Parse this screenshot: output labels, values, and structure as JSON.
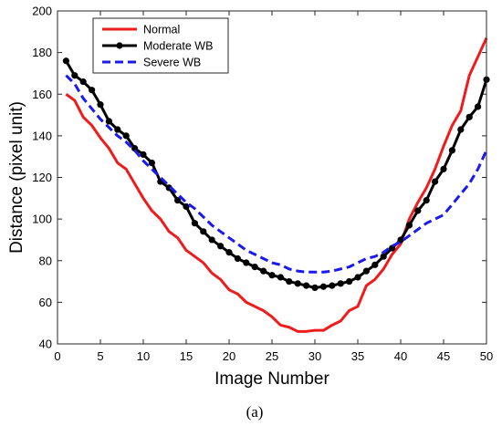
{
  "caption": "(a)",
  "chart_data": {
    "type": "line",
    "xlabel": "Image Number",
    "ylabel": "Distance (pixel unit)",
    "xlim": [
      0,
      50
    ],
    "ylim": [
      40,
      200
    ],
    "xticks": [
      0,
      5,
      10,
      15,
      20,
      25,
      30,
      35,
      40,
      45,
      50
    ],
    "yticks": [
      40,
      60,
      80,
      100,
      120,
      140,
      160,
      180,
      200
    ],
    "grid": false,
    "legend": "top-left",
    "x": [
      1,
      2,
      3,
      4,
      5,
      6,
      7,
      8,
      9,
      10,
      11,
      12,
      13,
      14,
      15,
      16,
      17,
      18,
      19,
      20,
      21,
      22,
      23,
      24,
      25,
      26,
      27,
      28,
      29,
      30,
      31,
      32,
      33,
      34,
      35,
      36,
      37,
      38,
      39,
      40,
      41,
      42,
      43,
      44,
      45,
      46,
      47,
      48,
      49,
      50
    ],
    "series": [
      {
        "name": "Normal",
        "color": "#ee1c1c",
        "style": "solid",
        "markers": false,
        "values": [
          160,
          157,
          149,
          145,
          139,
          134,
          127,
          124,
          117,
          110,
          104,
          100,
          94,
          91,
          85,
          82,
          79,
          74,
          71,
          66,
          64,
          60,
          58,
          56,
          53,
          49,
          48,
          46,
          46,
          46.5,
          46.5,
          49,
          51,
          56,
          58,
          68,
          71,
          76,
          83,
          88,
          100,
          108,
          115,
          124,
          135,
          145,
          152,
          169,
          178,
          187
        ]
      },
      {
        "name": "Moderate WB",
        "color": "#000000",
        "style": "solid",
        "markers": true,
        "values": [
          176,
          169,
          166,
          162,
          155,
          147,
          143,
          140,
          134,
          131,
          127,
          118,
          115,
          109,
          106,
          98,
          94,
          90,
          87,
          84,
          81,
          79,
          77,
          75,
          73,
          72,
          70,
          69,
          68,
          67,
          67.5,
          68,
          69,
          70,
          72,
          75,
          78,
          82,
          86,
          90,
          97,
          104,
          109,
          118,
          124,
          133,
          143,
          149,
          154,
          167
        ]
      },
      {
        "name": "Severe WB",
        "color": "#1a1aee",
        "style": "dashed",
        "markers": false,
        "values": [
          169,
          165,
          158,
          153,
          148,
          144,
          140,
          137,
          133,
          128,
          124,
          120,
          116,
          112,
          108,
          105,
          101,
          97,
          94,
          91,
          88,
          85,
          83,
          81,
          79,
          78,
          76,
          75,
          74.5,
          74.5,
          74.5,
          75,
          76,
          77,
          79,
          81,
          82,
          84,
          87,
          89,
          92,
          95,
          98,
          100,
          102,
          107,
          112,
          117,
          124,
          133
        ]
      }
    ]
  }
}
